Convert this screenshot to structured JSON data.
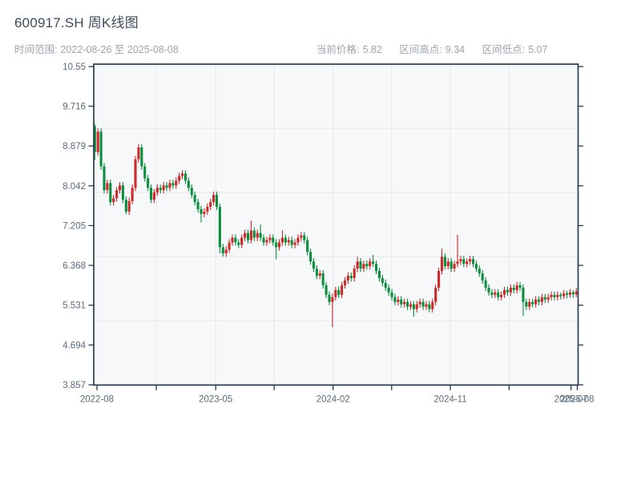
{
  "header": {
    "title": "600917.SH 周K线图",
    "range": {
      "label": "时间范围:",
      "value": "2022-08-26 至 2025-08-08"
    },
    "stats": [
      {
        "label": "当前价格:",
        "value": "5.82"
      },
      {
        "label": "区间高点:",
        "value": "9.34"
      },
      {
        "label": "区间低点:",
        "value": "5.07"
      }
    ]
  },
  "chart_data": {
    "type": "candlestick",
    "title": "600917.SH 周K线图",
    "period": "weekly",
    "x_range": [
      "2022-08-26",
      "2025-08-08"
    ],
    "current_price": 5.82,
    "range_high": 9.34,
    "range_low": 5.07,
    "ylim": [
      3.857,
      10.55
    ],
    "y_tick_labels": [
      "10.55",
      "9.716",
      "8.879",
      "8.042",
      "7.205",
      "6.368",
      "5.531",
      "4.694",
      "3.857"
    ],
    "x_ticks": [
      {
        "label": "2022-08",
        "week": 0.69
      },
      {
        "label": "",
        "week": 19.66
      },
      {
        "label": "2023-05",
        "week": 38.66
      },
      {
        "label": "",
        "week": 57.35
      },
      {
        "label": "2024-02",
        "week": 76.2
      },
      {
        "label": "",
        "week": 94.93
      },
      {
        "label": "2024-11",
        "week": 113.7
      },
      {
        "label": "",
        "week": 132.5
      },
      {
        "label": "2025-07",
        "week": 152.3
      },
      {
        "label": "2025-08",
        "week": 154.3
      }
    ],
    "gridlines": {
      "h_values": [
        9.251,
        7.901,
        6.552,
        5.203
      ],
      "v_weeks": [
        19.66,
        38.66,
        57.35,
        76.2,
        94.93,
        113.7,
        132.5
      ]
    },
    "legend": "none",
    "colors": {
      "up": "#cb2a2a",
      "down": "#0b8e3f",
      "plot_bg": "#f7f8fa",
      "grid": "#e5e8ec",
      "axis": "#2c3b4d",
      "tick_label": "#5a6a7b"
    },
    "candles": [
      [
        9.29,
        9.34,
        8.58,
        8.75
      ],
      [
        8.75,
        9.25,
        8.68,
        9.18
      ],
      [
        9.18,
        9.25,
        8.38,
        8.45
      ],
      [
        8.45,
        8.52,
        7.88,
        7.95
      ],
      [
        7.95,
        8.17,
        7.88,
        8.1
      ],
      [
        8.1,
        8.17,
        7.63,
        7.7
      ],
      [
        7.7,
        7.85,
        7.63,
        7.78
      ],
      [
        7.78,
        8.02,
        7.71,
        7.95
      ],
      [
        7.95,
        8.12,
        7.88,
        8.05
      ],
      [
        8.05,
        8.12,
        7.68,
        7.75
      ],
      [
        7.75,
        7.82,
        7.44,
        7.5
      ],
      [
        7.5,
        7.79,
        7.43,
        7.72
      ],
      [
        7.72,
        8.07,
        7.65,
        8.0
      ],
      [
        8.0,
        8.67,
        7.93,
        8.6
      ],
      [
        8.6,
        8.92,
        8.53,
        8.85
      ],
      [
        8.85,
        8.92,
        8.38,
        8.45
      ],
      [
        8.45,
        8.52,
        8.13,
        8.2
      ],
      [
        8.2,
        8.27,
        7.93,
        8.0
      ],
      [
        8.0,
        8.07,
        7.68,
        7.75
      ],
      [
        7.75,
        7.97,
        7.68,
        7.9
      ],
      [
        7.9,
        8.07,
        7.83,
        8.0
      ],
      [
        8.0,
        8.07,
        7.88,
        7.95
      ],
      [
        7.95,
        8.12,
        7.88,
        8.05
      ],
      [
        8.05,
        8.12,
        7.93,
        8.0
      ],
      [
        8.0,
        8.17,
        7.93,
        8.1
      ],
      [
        8.1,
        8.17,
        7.98,
        8.05
      ],
      [
        8.05,
        8.22,
        7.98,
        8.15
      ],
      [
        8.15,
        8.32,
        8.08,
        8.25
      ],
      [
        8.25,
        8.37,
        8.18,
        8.3
      ],
      [
        8.3,
        8.37,
        8.08,
        8.15
      ],
      [
        8.15,
        8.22,
        7.93,
        8.0
      ],
      [
        8.0,
        8.07,
        7.78,
        7.85
      ],
      [
        7.85,
        7.92,
        7.63,
        7.7
      ],
      [
        7.7,
        7.77,
        7.48,
        7.55
      ],
      [
        7.55,
        7.62,
        7.27,
        7.45
      ],
      [
        7.45,
        7.57,
        7.38,
        7.5
      ],
      [
        7.5,
        7.67,
        7.43,
        7.6
      ],
      [
        7.6,
        7.77,
        7.53,
        7.7
      ],
      [
        7.7,
        7.92,
        7.63,
        7.85
      ],
      [
        7.85,
        7.92,
        7.53,
        7.6
      ],
      [
        7.6,
        7.67,
        6.62,
        6.75
      ],
      [
        6.75,
        6.82,
        6.55,
        6.62
      ],
      [
        6.62,
        6.77,
        6.55,
        6.7
      ],
      [
        6.7,
        6.92,
        6.63,
        6.85
      ],
      [
        6.85,
        7.02,
        6.78,
        6.95
      ],
      [
        6.95,
        7.02,
        6.78,
        6.85
      ],
      [
        6.85,
        6.92,
        6.73,
        6.8
      ],
      [
        6.8,
        7.02,
        6.73,
        6.95
      ],
      [
        6.95,
        7.12,
        6.88,
        7.05
      ],
      [
        7.05,
        7.12,
        6.83,
        6.9
      ],
      [
        6.9,
        7.31,
        6.83,
        7.1
      ],
      [
        7.1,
        7.17,
        6.88,
        6.95
      ],
      [
        6.95,
        7.12,
        6.88,
        7.05
      ],
      [
        7.05,
        7.23,
        6.88,
        6.95
      ],
      [
        6.95,
        7.02,
        6.78,
        6.85
      ],
      [
        6.85,
        6.97,
        6.78,
        6.9
      ],
      [
        6.9,
        7.02,
        6.83,
        6.95
      ],
      [
        6.95,
        7.02,
        6.78,
        6.85
      ],
      [
        6.85,
        6.92,
        6.5,
        6.75
      ],
      [
        6.75,
        6.92,
        6.68,
        6.85
      ],
      [
        6.85,
        7.11,
        6.78,
        6.95
      ],
      [
        6.95,
        7.02,
        6.78,
        6.85
      ],
      [
        6.85,
        6.97,
        6.78,
        6.9
      ],
      [
        6.9,
        6.97,
        6.73,
        6.8
      ],
      [
        6.8,
        6.92,
        6.73,
        6.85
      ],
      [
        6.85,
        7.02,
        6.78,
        6.95
      ],
      [
        6.95,
        7.07,
        6.88,
        7.0
      ],
      [
        7.0,
        7.07,
        6.83,
        6.9
      ],
      [
        6.9,
        6.97,
        6.58,
        6.65
      ],
      [
        6.65,
        6.72,
        6.38,
        6.45
      ],
      [
        6.45,
        6.52,
        6.23,
        6.3
      ],
      [
        6.3,
        6.37,
        6.08,
        6.15
      ],
      [
        6.15,
        6.27,
        6.08,
        6.2
      ],
      [
        6.2,
        6.27,
        5.88,
        5.95
      ],
      [
        5.95,
        6.02,
        5.68,
        5.75
      ],
      [
        5.75,
        5.82,
        5.53,
        5.6
      ],
      [
        5.6,
        5.78,
        5.07,
        5.7
      ],
      [
        5.7,
        5.92,
        5.63,
        5.85
      ],
      [
        5.85,
        5.92,
        5.68,
        5.75
      ],
      [
        5.75,
        6.02,
        5.68,
        5.95
      ],
      [
        5.95,
        6.12,
        5.88,
        6.05
      ],
      [
        6.05,
        6.22,
        5.98,
        6.15
      ],
      [
        6.15,
        6.22,
        6.03,
        6.1
      ],
      [
        6.1,
        6.37,
        6.03,
        6.3
      ],
      [
        6.3,
        6.55,
        6.23,
        6.45
      ],
      [
        6.45,
        6.52,
        6.23,
        6.3
      ],
      [
        6.3,
        6.47,
        6.23,
        6.4
      ],
      [
        6.4,
        6.47,
        6.28,
        6.35
      ],
      [
        6.35,
        6.52,
        6.28,
        6.45
      ],
      [
        6.45,
        6.59,
        6.33,
        6.4
      ],
      [
        6.4,
        6.47,
        6.18,
        6.25
      ],
      [
        6.25,
        6.32,
        6.03,
        6.1
      ],
      [
        6.1,
        6.17,
        5.93,
        6.0
      ],
      [
        6.0,
        6.07,
        5.83,
        5.9
      ],
      [
        5.9,
        5.97,
        5.73,
        5.8
      ],
      [
        5.8,
        5.87,
        5.63,
        5.7
      ],
      [
        5.7,
        5.77,
        5.53,
        5.6
      ],
      [
        5.6,
        5.72,
        5.53,
        5.65
      ],
      [
        5.65,
        5.72,
        5.48,
        5.55
      ],
      [
        5.55,
        5.67,
        5.48,
        5.6
      ],
      [
        5.6,
        5.67,
        5.43,
        5.5
      ],
      [
        5.5,
        5.62,
        5.43,
        5.55
      ],
      [
        5.55,
        5.62,
        5.29,
        5.45
      ],
      [
        5.45,
        5.62,
        5.38,
        5.55
      ],
      [
        5.55,
        5.67,
        5.48,
        5.6
      ],
      [
        5.6,
        5.67,
        5.43,
        5.5
      ],
      [
        5.5,
        5.62,
        5.43,
        5.55
      ],
      [
        5.55,
        5.62,
        5.38,
        5.45
      ],
      [
        5.45,
        5.67,
        5.38,
        5.6
      ],
      [
        5.6,
        5.97,
        5.53,
        5.9
      ],
      [
        5.9,
        6.32,
        5.83,
        6.25
      ],
      [
        6.25,
        6.72,
        6.18,
        6.55
      ],
      [
        6.55,
        6.62,
        6.28,
        6.35
      ],
      [
        6.35,
        6.52,
        6.28,
        6.45
      ],
      [
        6.45,
        6.52,
        6.23,
        6.3
      ],
      [
        6.3,
        6.47,
        6.23,
        6.4
      ],
      [
        6.4,
        7.01,
        6.33,
        6.45
      ],
      [
        6.45,
        6.57,
        6.38,
        6.5
      ],
      [
        6.5,
        6.57,
        6.33,
        6.4
      ],
      [
        6.4,
        6.52,
        6.33,
        6.45
      ],
      [
        6.45,
        6.57,
        6.38,
        6.5
      ],
      [
        6.5,
        6.57,
        6.33,
        6.4
      ],
      [
        6.4,
        6.47,
        6.23,
        6.3
      ],
      [
        6.3,
        6.37,
        6.13,
        6.2
      ],
      [
        6.2,
        6.27,
        5.98,
        6.05
      ],
      [
        6.05,
        6.12,
        5.83,
        5.9
      ],
      [
        5.9,
        5.97,
        5.73,
        5.8
      ],
      [
        5.8,
        5.87,
        5.68,
        5.75
      ],
      [
        5.75,
        5.87,
        5.68,
        5.8
      ],
      [
        5.8,
        5.87,
        5.63,
        5.7
      ],
      [
        5.7,
        5.82,
        5.63,
        5.75
      ],
      [
        5.75,
        5.92,
        5.68,
        5.85
      ],
      [
        5.85,
        5.92,
        5.73,
        5.8
      ],
      [
        5.8,
        5.97,
        5.73,
        5.9
      ],
      [
        5.9,
        5.97,
        5.78,
        5.85
      ],
      [
        5.85,
        6.02,
        5.78,
        5.95
      ],
      [
        5.95,
        6.02,
        5.83,
        5.9
      ],
      [
        5.9,
        5.97,
        5.3,
        5.6
      ],
      [
        5.6,
        5.67,
        5.43,
        5.5
      ],
      [
        5.5,
        5.67,
        5.43,
        5.6
      ],
      [
        5.6,
        5.67,
        5.48,
        5.55
      ],
      [
        5.55,
        5.72,
        5.48,
        5.65
      ],
      [
        5.65,
        5.72,
        5.53,
        5.6
      ],
      [
        5.6,
        5.77,
        5.53,
        5.7
      ],
      [
        5.7,
        5.77,
        5.58,
        5.65
      ],
      [
        5.65,
        5.77,
        5.58,
        5.7
      ],
      [
        5.7,
        5.82,
        5.63,
        5.75
      ],
      [
        5.75,
        5.82,
        5.63,
        5.7
      ],
      [
        5.7,
        5.82,
        5.63,
        5.75
      ],
      [
        5.75,
        5.8,
        5.65,
        5.72
      ],
      [
        5.72,
        5.85,
        5.66,
        5.78
      ],
      [
        5.78,
        5.83,
        5.68,
        5.75
      ],
      [
        5.75,
        5.87,
        5.69,
        5.8
      ],
      [
        5.8,
        5.85,
        5.69,
        5.76
      ],
      [
        5.76,
        5.89,
        5.7,
        5.82
      ]
    ]
  }
}
